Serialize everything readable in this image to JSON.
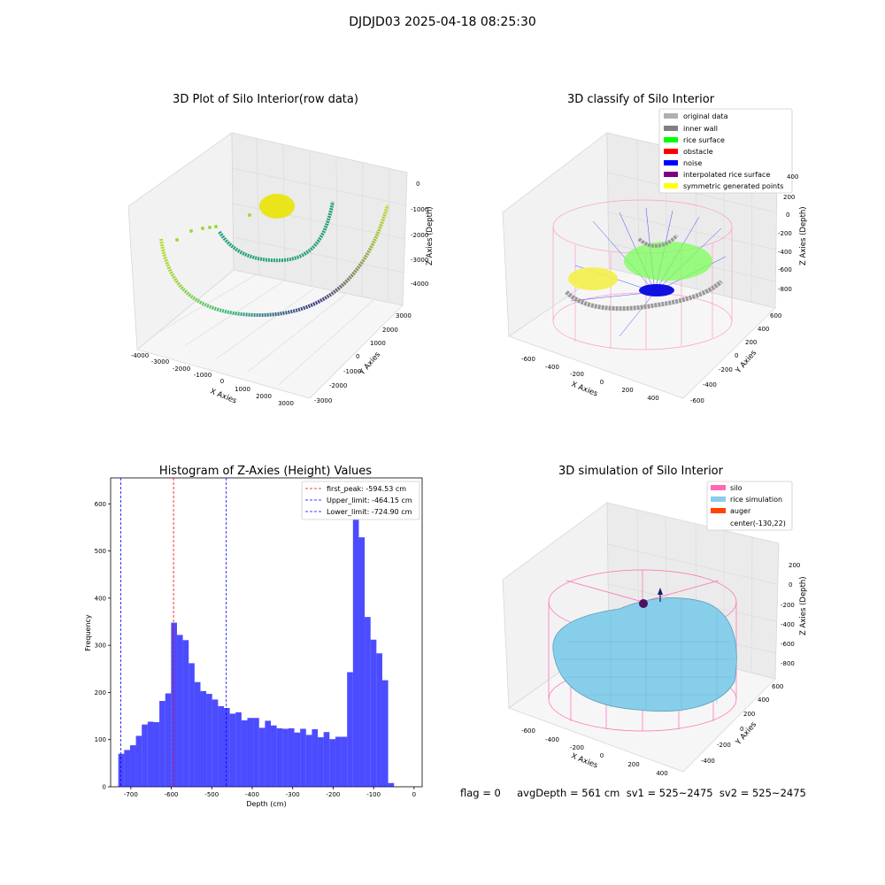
{
  "figure": {
    "suptitle": "DJDJD03 2025-04-18 08:25:30",
    "footer": "flag = 0     avgDepth = 561 cm  sv1 = 525~2475  sv2 = 525~2475"
  },
  "chart_data": [
    {
      "type": "scatter",
      "projection": "3d",
      "title": "3D Plot of Silo Interior(row data)",
      "xlabel": "X Axies",
      "ylabel": "Y Axies",
      "zlabel": "Z Axies (Depth)",
      "x_ticks": [
        -4000,
        -3000,
        -2000,
        -1000,
        0,
        1000,
        2000,
        3000
      ],
      "y_ticks": [
        -3000,
        -2000,
        -1000,
        0,
        1000,
        2000,
        3000
      ],
      "z_ticks": [
        0,
        -1000,
        -2000,
        -3000,
        -4000
      ],
      "colormap": "viridis"
    },
    {
      "type": "scatter",
      "projection": "3d",
      "title": "3D classify of Silo Interior",
      "xlabel": "X Axies",
      "ylabel": "Y Axies",
      "zlabel": "Z Axies (Depth)",
      "x_ticks": [
        -600,
        -400,
        -200,
        0,
        200,
        400
      ],
      "y_ticks": [
        -600,
        -400,
        -200,
        0,
        200,
        400,
        600
      ],
      "z_ticks": [
        400,
        200,
        0,
        -200,
        -400,
        -600,
        -800
      ],
      "legend_position": "top-right",
      "legend": [
        {
          "label": "original data",
          "color": "#b0b0b0"
        },
        {
          "label": "inner wall",
          "color": "#808080"
        },
        {
          "label": "rice surface",
          "color": "#00ff00"
        },
        {
          "label": "obstacle",
          "color": "#ff0000"
        },
        {
          "label": "noise",
          "color": "#0000ff"
        },
        {
          "label": "interpolated rice surface",
          "color": "#800080"
        },
        {
          "label": "symmetric generated points",
          "color": "#ffff00"
        }
      ]
    },
    {
      "type": "bar",
      "title": "Histogram of Z-Axies (Height) Values",
      "xlabel": "Depth (cm)",
      "ylabel": "Frequency",
      "xlim": [
        -750,
        20
      ],
      "ylim": [
        0,
        655
      ],
      "x_ticks": [
        -700,
        -600,
        -500,
        -400,
        -300,
        -200,
        -100,
        0
      ],
      "y_ticks": [
        0,
        100,
        200,
        300,
        400,
        500,
        600
      ],
      "bar_color": "#0000ff",
      "bin_start": -731,
      "bin_width": 14.5,
      "values": [
        70,
        78,
        88,
        108,
        132,
        138,
        137,
        182,
        198,
        348,
        322,
        311,
        262,
        222,
        203,
        197,
        185,
        171,
        167,
        155,
        158,
        141,
        146,
        146,
        125,
        140,
        130,
        124,
        123,
        124,
        115,
        123,
        110,
        122,
        105,
        116,
        101,
        106,
        106,
        243,
        621,
        529,
        360,
        312,
        283,
        226,
        8
      ],
      "lines": [
        {
          "label": "first_peak: -594.53 cm",
          "x": -594.53,
          "color": "#ff0000"
        },
        {
          "label": "Upper_limit: -464.15 cm",
          "x": -464.15,
          "color": "#0000ff"
        },
        {
          "label": "Lower_limit: -724.90 cm",
          "x": -724.9,
          "color": "#0000ff"
        }
      ],
      "legend_position": "top-right"
    },
    {
      "type": "surface",
      "projection": "3d",
      "title": "3D simulation of Silo Interior",
      "xlabel": "X Axies",
      "ylabel": "Y Axies",
      "zlabel": "Z Axies (Depth)",
      "x_ticks": [
        -600,
        -400,
        -200,
        0,
        200,
        400
      ],
      "y_ticks": [
        -400,
        -200,
        0,
        200,
        400,
        600
      ],
      "z_ticks": [
        200,
        0,
        -200,
        -400,
        -600,
        -800
      ],
      "legend_position": "top-right",
      "legend": [
        {
          "label": "silo",
          "color": "#ff69b4"
        },
        {
          "label": "rice simulation",
          "color": "#87ceeb"
        },
        {
          "label": "auger",
          "color": "#ff4500"
        },
        {
          "label": "center(-130,22)",
          "color": ""
        }
      ]
    }
  ]
}
